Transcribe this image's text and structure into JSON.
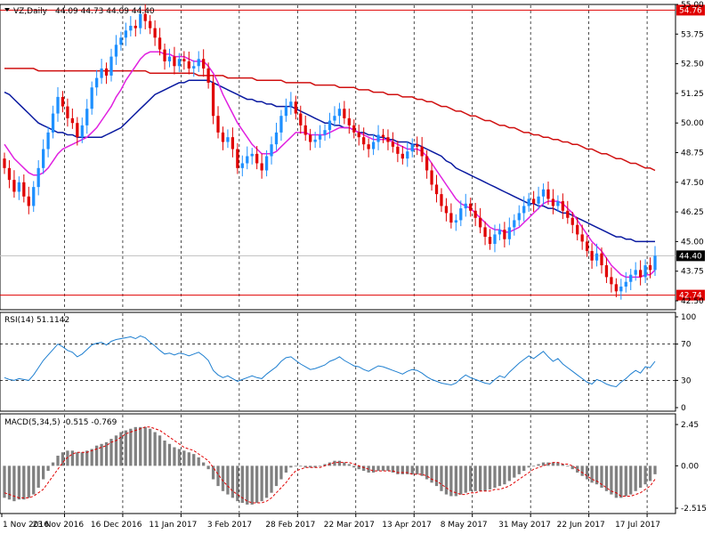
{
  "header": {
    "symbol": "VZ,Daily",
    "ohlc": "44.09 44.73 44.09 44.40"
  },
  "colors": {
    "bull": "#1e90ff",
    "bear": "#e00000",
    "ma_fast": "#e020e0",
    "ma_mid": "#0a1aa0",
    "ma_slow": "#d01010",
    "rsi": "#1e7fd0",
    "macd_signal": "#e00000",
    "macd_hist": "#808080",
    "hline": "#e00000",
    "price_tag_bg": "#ffffff"
  },
  "chart_data": [
    {
      "type": "candlestick",
      "title": "VZ,Daily",
      "ylim": [
        42.5,
        55.0
      ],
      "y_ticks": [
        "55.00",
        "53.75",
        "52.50",
        "51.25",
        "50.00",
        "48.75",
        "47.50",
        "46.25",
        "45.00",
        "43.75",
        "42.50"
      ],
      "x_ticks": [
        "1 Nov 2016",
        "23 Nov 2016",
        "16 Dec 2016",
        "11 Jan 2017",
        "3 Feb 2017",
        "28 Feb 2017",
        "22 Mar 2017",
        "13 Apr 2017",
        "8 May 2017",
        "31 May 2017",
        "22 Jun 2017",
        "17 Jul 2017"
      ],
      "horizontal_lines": [
        {
          "value": 54.76,
          "label": "54.76"
        },
        {
          "value": 42.74,
          "label": "42.74"
        }
      ],
      "current_price": {
        "value": 44.4,
        "label": "44.40"
      },
      "close": [
        48.1,
        47.6,
        47.1,
        47.5,
        46.9,
        46.5,
        47.3,
        48.1,
        48.9,
        49.6,
        50.4,
        51.1,
        50.7,
        50.2,
        50.0,
        49.4,
        49.9,
        50.6,
        51.5,
        51.9,
        52.3,
        52.0,
        52.8,
        53.3,
        53.6,
        53.9,
        54.1,
        54.0,
        54.6,
        54.3,
        54.0,
        53.6,
        53.1,
        52.6,
        52.8,
        52.4,
        52.7,
        52.6,
        52.3,
        52.4,
        52.7,
        52.3,
        51.7,
        50.3,
        49.6,
        49.2,
        49.4,
        48.9,
        48.1,
        48.3,
        48.6,
        48.7,
        48.3,
        48.0,
        48.6,
        49.1,
        49.6,
        50.3,
        50.7,
        50.9,
        50.4,
        49.9,
        49.5,
        49.2,
        49.3,
        49.5,
        49.7,
        50.1,
        50.3,
        50.6,
        50.2,
        49.9,
        49.6,
        49.4,
        49.1,
        48.9,
        49.2,
        49.5,
        49.4,
        49.2,
        49.0,
        48.7,
        48.5,
        48.8,
        49.1,
        49.0,
        48.6,
        48.0,
        47.4,
        47.0,
        46.5,
        46.2,
        45.8,
        45.9,
        46.4,
        46.6,
        46.3,
        46.0,
        45.6,
        45.2,
        44.9,
        45.3,
        45.5,
        45.1,
        45.6,
        45.9,
        46.2,
        46.5,
        46.8,
        46.6,
        46.9,
        47.2,
        46.8,
        46.5,
        46.7,
        46.3,
        46.0,
        45.7,
        45.3,
        45.0,
        44.6,
        44.2,
        44.5,
        44.0,
        43.5,
        43.2,
        42.9,
        43.1,
        43.3,
        43.6,
        43.8,
        43.5,
        44.0,
        43.8,
        44.4
      ],
      "overlays": {
        "ma_fast": [
          49.1,
          48.8,
          48.5,
          48.3,
          48.1,
          47.9,
          47.8,
          47.8,
          47.9,
          48.1,
          48.4,
          48.7,
          48.9,
          49.0,
          49.1,
          49.2,
          49.3,
          49.4,
          49.6,
          49.8,
          50.1,
          50.4,
          50.7,
          51.1,
          51.4,
          51.8,
          52.1,
          52.4,
          52.7,
          52.9,
          53.0,
          53.0,
          53.0,
          52.9,
          52.9,
          52.8,
          52.8,
          52.8,
          52.7,
          52.6,
          52.6,
          52.6,
          52.4,
          52.1,
          51.7,
          51.2,
          50.8,
          50.4,
          50.0,
          49.7,
          49.4,
          49.1,
          48.9,
          48.7,
          48.7,
          48.7,
          48.8,
          49.0,
          49.2,
          49.4,
          49.6,
          49.6,
          49.6,
          49.5,
          49.5,
          49.5,
          49.5,
          49.6,
          49.7,
          49.8,
          49.8,
          49.8,
          49.7,
          49.6,
          49.5,
          49.4,
          49.3,
          49.3,
          49.3,
          49.3,
          49.2,
          49.1,
          49.0,
          48.9,
          48.9,
          48.9,
          48.8,
          48.6,
          48.3,
          48.0,
          47.7,
          47.4,
          47.1,
          46.8,
          46.6,
          46.5,
          46.4,
          46.2,
          46.0,
          45.8,
          45.6,
          45.5,
          45.5,
          45.4,
          45.4,
          45.5,
          45.6,
          45.8,
          46.0,
          46.2,
          46.4,
          46.6,
          46.7,
          46.7,
          46.7,
          46.6,
          46.4,
          46.2,
          45.9,
          45.6,
          45.3,
          45.0,
          44.8,
          44.6,
          44.3,
          44.0,
          43.8,
          43.6,
          43.5,
          43.5,
          43.5,
          43.5,
          43.6,
          43.6,
          43.8
        ],
        "ma_mid": [
          51.3,
          51.2,
          51.0,
          50.8,
          50.6,
          50.4,
          50.2,
          50.0,
          49.9,
          49.8,
          49.7,
          49.6,
          49.6,
          49.5,
          49.5,
          49.4,
          49.4,
          49.4,
          49.4,
          49.4,
          49.4,
          49.5,
          49.6,
          49.7,
          49.8,
          50.0,
          50.2,
          50.4,
          50.6,
          50.8,
          51.0,
          51.2,
          51.3,
          51.4,
          51.5,
          51.6,
          51.7,
          51.7,
          51.8,
          51.8,
          51.8,
          51.8,
          51.8,
          51.7,
          51.6,
          51.5,
          51.4,
          51.3,
          51.2,
          51.1,
          51.0,
          51.0,
          50.9,
          50.9,
          50.8,
          50.8,
          50.7,
          50.7,
          50.7,
          50.7,
          50.6,
          50.5,
          50.4,
          50.3,
          50.2,
          50.1,
          50.0,
          50.0,
          49.9,
          49.9,
          49.8,
          49.8,
          49.7,
          49.6,
          49.6,
          49.5,
          49.5,
          49.4,
          49.4,
          49.3,
          49.3,
          49.2,
          49.2,
          49.2,
          49.1,
          49.1,
          49.0,
          48.9,
          48.8,
          48.7,
          48.6,
          48.4,
          48.3,
          48.1,
          48.0,
          47.9,
          47.8,
          47.7,
          47.6,
          47.5,
          47.4,
          47.3,
          47.2,
          47.1,
          47.0,
          46.9,
          46.8,
          46.7,
          46.6,
          46.6,
          46.5,
          46.5,
          46.4,
          46.4,
          46.3,
          46.2,
          46.2,
          46.1,
          46.0,
          45.9,
          45.8,
          45.7,
          45.6,
          45.5,
          45.4,
          45.3,
          45.2,
          45.2,
          45.1,
          45.1,
          45.0,
          45.0,
          45.0,
          45.0,
          45.0
        ],
        "ma_slow": [
          52.3,
          52.3,
          52.3,
          52.3,
          52.3,
          52.3,
          52.3,
          52.2,
          52.2,
          52.2,
          52.2,
          52.2,
          52.2,
          52.2,
          52.2,
          52.2,
          52.2,
          52.2,
          52.2,
          52.2,
          52.2,
          52.2,
          52.2,
          52.2,
          52.2,
          52.2,
          52.2,
          52.2,
          52.2,
          52.2,
          52.1,
          52.1,
          52.1,
          52.1,
          52.1,
          52.1,
          52.1,
          52.1,
          52.1,
          52.1,
          52.0,
          52.0,
          52.0,
          52.0,
          52.0,
          52.0,
          51.9,
          51.9,
          51.9,
          51.9,
          51.9,
          51.9,
          51.8,
          51.8,
          51.8,
          51.8,
          51.8,
          51.8,
          51.7,
          51.7,
          51.7,
          51.7,
          51.7,
          51.7,
          51.6,
          51.6,
          51.6,
          51.6,
          51.6,
          51.5,
          51.5,
          51.5,
          51.5,
          51.4,
          51.4,
          51.4,
          51.3,
          51.3,
          51.3,
          51.2,
          51.2,
          51.2,
          51.1,
          51.1,
          51.1,
          51.0,
          51.0,
          50.9,
          50.9,
          50.8,
          50.7,
          50.7,
          50.6,
          50.5,
          50.5,
          50.4,
          50.3,
          50.3,
          50.2,
          50.1,
          50.1,
          50.0,
          49.9,
          49.9,
          49.8,
          49.8,
          49.7,
          49.6,
          49.6,
          49.5,
          49.5,
          49.4,
          49.4,
          49.3,
          49.3,
          49.2,
          49.2,
          49.1,
          49.1,
          49.0,
          48.9,
          48.9,
          48.8,
          48.7,
          48.7,
          48.6,
          48.5,
          48.5,
          48.4,
          48.3,
          48.3,
          48.2,
          48.1,
          48.1,
          48.0
        ]
      }
    },
    {
      "type": "line",
      "title": "RSI(14) 51.1142",
      "ylim": [
        0,
        100
      ],
      "y_ticks": [
        "100",
        "70",
        "30",
        "0"
      ],
      "levels": [
        70,
        30
      ],
      "values": [
        33,
        31,
        30,
        32,
        31,
        30,
        36,
        44,
        52,
        58,
        64,
        70,
        67,
        63,
        61,
        56,
        59,
        64,
        69,
        71,
        72,
        69,
        73,
        75,
        76,
        77,
        78,
        76,
        79,
        77,
        72,
        68,
        63,
        59,
        60,
        58,
        60,
        59,
        57,
        59,
        61,
        57,
        52,
        41,
        36,
        33,
        35,
        32,
        29,
        31,
        33,
        35,
        33,
        32,
        37,
        41,
        45,
        51,
        55,
        56,
        52,
        48,
        45,
        42,
        43,
        45,
        47,
        51,
        53,
        56,
        52,
        49,
        46,
        45,
        42,
        40,
        43,
        46,
        45,
        43,
        41,
        39,
        37,
        40,
        42,
        41,
        38,
        34,
        31,
        29,
        27,
        26,
        25,
        27,
        32,
        36,
        33,
        31,
        29,
        27,
        26,
        31,
        35,
        33,
        39,
        44,
        49,
        53,
        57,
        54,
        58,
        62,
        56,
        51,
        54,
        48,
        44,
        40,
        36,
        32,
        28,
        26,
        31,
        29,
        26,
        24,
        23,
        28,
        32,
        37,
        41,
        38,
        45,
        44,
        51
      ]
    },
    {
      "type": "bar+line",
      "title": "MACD(5,34,5) -0.515 -0.769",
      "ylim": [
        -2.515,
        2.45
      ],
      "y_ticks": [
        "2.45",
        "0.00",
        "-2.515"
      ],
      "histogram": [
        -1.9,
        -2.0,
        -2.1,
        -2.0,
        -2.0,
        -1.9,
        -1.7,
        -1.3,
        -0.8,
        -0.3,
        0.2,
        0.6,
        0.8,
        0.9,
        0.9,
        0.8,
        0.8,
        0.9,
        1.0,
        1.2,
        1.3,
        1.4,
        1.6,
        1.8,
        2.0,
        2.1,
        2.2,
        2.3,
        2.3,
        2.3,
        2.2,
        2.0,
        1.8,
        1.5,
        1.3,
        1.1,
        1.0,
        0.9,
        0.8,
        0.7,
        0.5,
        0.2,
        -0.2,
        -0.8,
        -1.2,
        -1.5,
        -1.7,
        -1.9,
        -2.1,
        -2.2,
        -2.3,
        -2.3,
        -2.2,
        -2.1,
        -1.9,
        -1.6,
        -1.2,
        -0.8,
        -0.4,
        -0.1,
        0.0,
        0.0,
        -0.1,
        -0.1,
        -0.1,
        0.0,
        0.1,
        0.2,
        0.3,
        0.3,
        0.2,
        0.1,
        -0.1,
        -0.2,
        -0.3,
        -0.4,
        -0.4,
        -0.3,
        -0.3,
        -0.3,
        -0.4,
        -0.5,
        -0.5,
        -0.5,
        -0.5,
        -0.5,
        -0.6,
        -0.8,
        -1.0,
        -1.2,
        -1.5,
        -1.7,
        -1.8,
        -1.8,
        -1.7,
        -1.6,
        -1.5,
        -1.5,
        -1.5,
        -1.5,
        -1.4,
        -1.3,
        -1.2,
        -1.1,
        -0.9,
        -0.7,
        -0.5,
        -0.3,
        -0.1,
        0.0,
        0.1,
        0.2,
        0.2,
        0.2,
        0.2,
        0.1,
        0.0,
        -0.2,
        -0.4,
        -0.6,
        -0.8,
        -1.0,
        -1.1,
        -1.3,
        -1.5,
        -1.7,
        -1.9,
        -1.9,
        -1.8,
        -1.7,
        -1.5,
        -1.3,
        -1.1,
        -0.9,
        -0.5
      ],
      "signal": [
        -1.6,
        -1.7,
        -1.8,
        -1.9,
        -1.9,
        -1.9,
        -1.8,
        -1.6,
        -1.4,
        -1.0,
        -0.6,
        -0.2,
        0.2,
        0.5,
        0.7,
        0.8,
        0.8,
        0.8,
        0.9,
        1.0,
        1.1,
        1.2,
        1.4,
        1.5,
        1.7,
        1.9,
        2.0,
        2.1,
        2.2,
        2.3,
        2.3,
        2.2,
        2.1,
        1.9,
        1.7,
        1.5,
        1.3,
        1.1,
        1.0,
        0.9,
        0.7,
        0.5,
        0.3,
        -0.1,
        -0.5,
        -0.9,
        -1.2,
        -1.5,
        -1.7,
        -1.9,
        -2.1,
        -2.2,
        -2.2,
        -2.2,
        -2.1,
        -1.9,
        -1.6,
        -1.3,
        -1.0,
        -0.6,
        -0.3,
        -0.2,
        -0.1,
        -0.1,
        -0.1,
        -0.1,
        0.0,
        0.1,
        0.2,
        0.2,
        0.2,
        0.2,
        0.1,
        -0.0,
        -0.1,
        -0.2,
        -0.3,
        -0.3,
        -0.3,
        -0.3,
        -0.3,
        -0.4,
        -0.4,
        -0.4,
        -0.5,
        -0.5,
        -0.5,
        -0.6,
        -0.8,
        -0.9,
        -1.1,
        -1.3,
        -1.5,
        -1.6,
        -1.7,
        -1.7,
        -1.6,
        -1.6,
        -1.5,
        -1.5,
        -1.5,
        -1.4,
        -1.4,
        -1.3,
        -1.2,
        -1.0,
        -0.8,
        -0.6,
        -0.4,
        -0.2,
        -0.1,
        0.0,
        0.1,
        0.2,
        0.2,
        0.1,
        0.1,
        -0.0,
        -0.2,
        -0.4,
        -0.6,
        -0.8,
        -0.9,
        -1.1,
        -1.3,
        -1.5,
        -1.6,
        -1.8,
        -1.8,
        -1.8,
        -1.7,
        -1.6,
        -1.4,
        -1.2,
        -0.8
      ]
    }
  ]
}
